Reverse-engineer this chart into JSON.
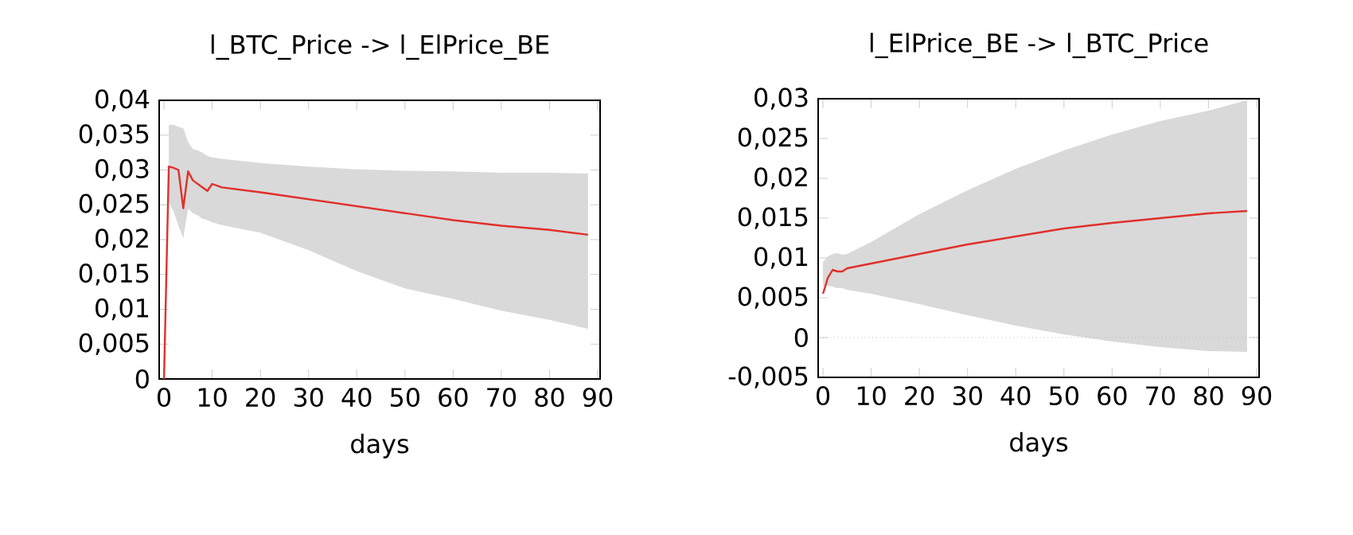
{
  "chart_data": [
    {
      "type": "line",
      "title": "l_BTC_Price -> l_ElPrice_BE",
      "xlabel": "days",
      "xlim": [
        -1,
        90.5
      ],
      "ylim": [
        0,
        0.04
      ],
      "xticks": [
        0,
        10,
        20,
        30,
        40,
        50,
        60,
        70,
        80,
        90
      ],
      "yticks": [
        {
          "value": 0,
          "label": "0"
        },
        {
          "value": 0.005,
          "label": "0,005"
        },
        {
          "value": 0.01,
          "label": "0,01"
        },
        {
          "value": 0.015,
          "label": "0,015"
        },
        {
          "value": 0.02,
          "label": "0,02"
        },
        {
          "value": 0.025,
          "label": "0,025"
        },
        {
          "value": 0.03,
          "label": "0,03"
        },
        {
          "value": 0.035,
          "label": "0,035"
        },
        {
          "value": 0.04,
          "label": "0,04"
        }
      ],
      "grid": false,
      "x": [
        0,
        1,
        2,
        3,
        4,
        5,
        6,
        7,
        8,
        9,
        10,
        12,
        20,
        30,
        40,
        50,
        60,
        70,
        80,
        88
      ],
      "series": [
        {
          "color": "#e0302a",
          "values": [
            0,
            0.0305,
            0.0303,
            0.03,
            0.0245,
            0.0298,
            0.0285,
            0.028,
            0.0275,
            0.027,
            0.028,
            0.0275,
            0.0268,
            0.0258,
            0.0248,
            0.0238,
            0.0228,
            0.022,
            0.0214,
            0.0207
          ],
          "upper": [
            null,
            0.0365,
            0.0365,
            0.0362,
            0.036,
            0.034,
            0.033,
            0.0328,
            0.0325,
            0.032,
            0.0318,
            0.0316,
            0.031,
            0.0305,
            0.0301,
            0.0299,
            0.0298,
            0.0296,
            0.0296,
            0.0295
          ],
          "lower": [
            null,
            0.0255,
            0.024,
            0.022,
            0.0202,
            0.0245,
            0.0238,
            0.0235,
            0.023,
            0.0228,
            0.0225,
            0.0221,
            0.021,
            0.0185,
            0.0155,
            0.013,
            0.0115,
            0.0098,
            0.0085,
            0.0072
          ]
        }
      ]
    },
    {
      "type": "line",
      "title": "l_ElPrice_BE -> l_BTC_Price",
      "xlabel": "days",
      "xlim": [
        -1,
        90.5
      ],
      "ylim": [
        -0.005,
        0.03
      ],
      "xticks": [
        0,
        10,
        20,
        30,
        40,
        50,
        60,
        70,
        80,
        90
      ],
      "yticks": [
        {
          "value": -0.005,
          "label": "-0,005"
        },
        {
          "value": 0,
          "label": "0"
        },
        {
          "value": 0.005,
          "label": "0,005"
        },
        {
          "value": 0.01,
          "label": "0,01"
        },
        {
          "value": 0.015,
          "label": "0,015"
        },
        {
          "value": 0.02,
          "label": "0,02"
        },
        {
          "value": 0.025,
          "label": "0,025"
        },
        {
          "value": 0.03,
          "label": "0,03"
        }
      ],
      "grid": false,
      "x": [
        0,
        1,
        2,
        3,
        4,
        5,
        10,
        20,
        30,
        40,
        50,
        60,
        70,
        80,
        88
      ],
      "ref_lines": [
        {
          "axis": "y",
          "value": 0,
          "line_style": "dotted",
          "color": "#999999"
        }
      ],
      "series": [
        {
          "color": "#e0302a",
          "values": [
            0.0055,
            0.0075,
            0.0085,
            0.0083,
            0.0083,
            0.0087,
            0.0093,
            0.0105,
            0.0117,
            0.0127,
            0.0137,
            0.0144,
            0.015,
            0.0156,
            0.0159
          ],
          "upper": [
            0.0095,
            0.0102,
            0.0105,
            0.0106,
            0.0104,
            0.0105,
            0.012,
            0.0155,
            0.0185,
            0.0212,
            0.0235,
            0.0255,
            0.0272,
            0.0285,
            0.0298
          ],
          "lower": [
            0.0065,
            0.0065,
            0.0064,
            0.0062,
            0.0062,
            0.006,
            0.0055,
            0.0042,
            0.0028,
            0.0015,
            0.0004,
            -0.0005,
            -0.0012,
            -0.0017,
            -0.0018
          ]
        }
      ]
    }
  ]
}
